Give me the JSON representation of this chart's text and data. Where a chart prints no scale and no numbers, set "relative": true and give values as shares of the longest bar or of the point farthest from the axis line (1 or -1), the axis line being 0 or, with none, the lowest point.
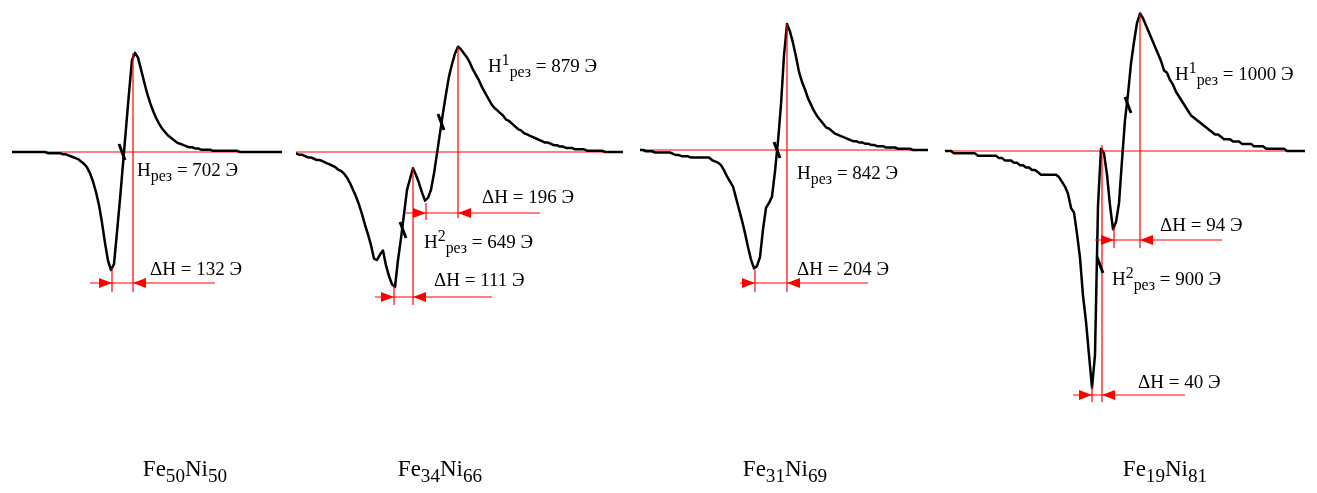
{
  "chart_data": [
    {
      "type": "line",
      "relative": true,
      "marker": "none",
      "color": "#000000",
      "xlabel": "Fe$_{50}$Ni$_{50}$",
      "ref_lines": [
        {
          "axis": "y",
          "value": 0,
          "color": "#ff0000"
        }
      ],
      "annotations": [
        "H$_{рез}$ = 702 Э",
        "ΔH = 132 Э"
      ],
      "categories": [
        null,
        null,
        null,
        null,
        null,
        null,
        null,
        null,
        null,
        null,
        null,
        null,
        null,
        null,
        null,
        null,
        null,
        null,
        null,
        null,
        null,
        null,
        null,
        null,
        null,
        null,
        null,
        null,
        null,
        null,
        null,
        null,
        null,
        null,
        null,
        null,
        null,
        null,
        null,
        null,
        null,
        null,
        null,
        null,
        null,
        null,
        null,
        null,
        null,
        null,
        null,
        null,
        null,
        null,
        null,
        null,
        null,
        null,
        null,
        null,
        null,
        null,
        null,
        null,
        null,
        null,
        null,
        null,
        null,
        null,
        null,
        null,
        null,
        null,
        null,
        null,
        null,
        null,
        null,
        null,
        null,
        null,
        null,
        null,
        null,
        null,
        null,
        null,
        null,
        null,
        null
      ],
      "values": [
        0,
        0,
        0,
        0,
        0,
        0,
        0,
        0,
        0,
        0,
        0,
        0,
        -0.01,
        -0.01,
        -0.01,
        -0.01,
        -0.01,
        -0.02,
        -0.02,
        -0.03,
        -0.04,
        -0.05,
        -0.06,
        -0.08,
        -0.1,
        -0.13,
        -0.18,
        -0.25,
        -0.34,
        -0.45,
        -0.6,
        -0.77,
        -0.92,
        -1,
        -0.95,
        -0.68,
        -0.4,
        -0.1,
        0.2,
        0.5,
        0.78,
        0.84,
        0.8,
        0.7,
        0.6,
        0.5,
        0.42,
        0.35,
        0.29,
        0.24,
        0.2,
        0.17,
        0.14,
        0.12,
        0.1,
        0.08,
        0.07,
        0.06,
        0.05,
        0.04,
        0.04,
        0.03,
        0.03,
        0.02,
        0.02,
        0.02,
        0.02,
        0.01,
        0.01,
        0.01,
        0.01,
        0.01,
        0.01,
        0.01,
        0.01,
        0.01,
        0,
        0,
        0,
        0,
        0,
        0,
        0,
        0,
        0,
        0,
        0,
        0,
        0,
        0,
        0
      ]
    },
    {
      "type": "line",
      "relative": true,
      "marker": "none",
      "color": "#000000",
      "xlabel": "Fe$_{34}$Ni$_{66}$",
      "ref_lines": [
        {
          "axis": "y",
          "value": 0,
          "color": "#ff0000"
        }
      ],
      "annotations": [
        "H$^{1}$$_{рез}$ = 879 Э",
        "ΔH = 196 Э",
        "H$^{2}$$_{рез}$ = 649 Э",
        "ΔH = 111 Э"
      ],
      "categories": [
        null,
        null,
        null,
        null,
        null,
        null,
        null,
        null,
        null,
        null,
        null,
        null,
        null,
        null,
        null,
        null,
        null,
        null,
        null,
        null,
        null,
        null,
        null,
        null,
        null,
        null,
        null,
        null,
        null,
        null,
        null,
        null,
        null,
        null,
        null,
        null,
        null,
        null,
        null,
        null,
        null,
        null,
        null,
        null,
        null,
        null,
        null,
        null,
        null,
        null,
        null,
        null,
        null,
        null,
        null,
        null,
        null,
        null,
        null,
        null,
        null,
        null,
        null,
        null,
        null,
        null,
        null,
        null,
        null,
        null,
        null,
        null,
        null,
        null,
        null,
        null,
        null,
        null,
        null,
        null,
        null,
        null,
        null,
        null,
        null,
        null,
        null,
        null,
        null,
        null,
        null,
        null,
        null,
        null,
        null,
        null,
        null,
        null,
        null,
        null,
        null,
        null,
        null,
        null,
        null,
        null,
        null,
        null,
        null,
        null
      ],
      "values": [
        -0.01,
        -0.02,
        -0.02,
        -0.03,
        -0.04,
        -0.04,
        -0.05,
        -0.06,
        -0.06,
        -0.07,
        -0.08,
        -0.09,
        -0.1,
        -0.11,
        -0.13,
        -0.14,
        -0.16,
        -0.19,
        -0.23,
        -0.28,
        -0.33,
        -0.39,
        -0.46,
        -0.54,
        -0.61,
        -0.69,
        -0.79,
        -0.8,
        -0.76,
        -0.73,
        -0.84,
        -0.92,
        -0.98,
        -1,
        -0.8,
        -0.64,
        -0.46,
        -0.28,
        -0.2,
        -0.12,
        -0.17,
        -0.23,
        -0.3,
        -0.36,
        -0.34,
        -0.28,
        -0.16,
        -0.01,
        0.14,
        0.29,
        0.43,
        0.56,
        0.65,
        0.73,
        0.78,
        0.76,
        0.73,
        0.7,
        0.66,
        0.61,
        0.57,
        0.53,
        0.48,
        0.44,
        0.4,
        0.36,
        0.33,
        0.31,
        0.29,
        0.27,
        0.24,
        0.23,
        0.21,
        0.19,
        0.17,
        0.16,
        0.14,
        0.13,
        0.12,
        0.11,
        0.1,
        0.09,
        0.08,
        0.07,
        0.07,
        0.06,
        0.05,
        0.05,
        0.04,
        0.04,
        0.03,
        0.03,
        0.03,
        0.02,
        0.02,
        0.02,
        0.02,
        0.01,
        0.01,
        0.01,
        0.01,
        0.01,
        0.01,
        0,
        0,
        0,
        0,
        0,
        0,
        0
      ]
    },
    {
      "type": "line",
      "relative": true,
      "marker": "none",
      "color": "#000000",
      "xlabel": "Fe$_{31}$Ni$_{69}$",
      "ref_lines": [
        {
          "axis": "y",
          "value": 0,
          "color": "#ff0000"
        }
      ],
      "annotations": [
        "H$_{рез}$ = 842 Э",
        "ΔH = 204 Э"
      ],
      "categories": [
        null,
        null,
        null,
        null,
        null,
        null,
        null,
        null,
        null,
        null,
        null,
        null,
        null,
        null,
        null,
        null,
        null,
        null,
        null,
        null,
        null,
        null,
        null,
        null,
        null,
        null,
        null,
        null,
        null,
        null,
        null,
        null,
        null,
        null,
        null,
        null,
        null,
        null,
        null,
        null,
        null,
        null,
        null,
        null,
        null,
        null,
        null,
        null,
        null,
        null,
        null,
        null,
        null,
        null,
        null,
        null,
        null,
        null,
        null,
        null,
        null,
        null,
        null,
        null,
        null,
        null,
        null,
        null,
        null,
        null,
        null,
        null,
        null,
        null,
        null,
        null,
        null,
        null,
        null,
        null,
        null,
        null,
        null,
        null,
        null,
        null,
        null,
        null,
        null,
        null,
        null,
        null,
        null,
        null,
        null,
        null,
        null
      ],
      "values": [
        0,
        0,
        -0.01,
        -0.01,
        -0.01,
        -0.02,
        -0.02,
        -0.02,
        -0.02,
        -0.02,
        -0.02,
        -0.03,
        -0.04,
        -0.04,
        -0.05,
        -0.05,
        -0.05,
        -0.06,
        -0.06,
        -0.06,
        -0.06,
        -0.06,
        -0.06,
        -0.06,
        -0.08,
        -0.09,
        -0.1,
        -0.12,
        -0.16,
        -0.21,
        -0.25,
        -0.29,
        -0.38,
        -0.47,
        -0.56,
        -0.66,
        -0.77,
        -0.87,
        -0.94,
        -0.92,
        -0.85,
        -0.63,
        -0.46,
        -0.42,
        -0.37,
        -0.17,
        0.07,
        0.36,
        0.75,
        1,
        0.94,
        0.85,
        0.74,
        0.62,
        0.54,
        0.48,
        0.41,
        0.36,
        0.31,
        0.27,
        0.24,
        0.21,
        0.18,
        0.17,
        0.15,
        0.13,
        0.12,
        0.11,
        0.1,
        0.09,
        0.08,
        0.07,
        0.07,
        0.06,
        0.06,
        0.05,
        0.05,
        0.04,
        0.04,
        0.03,
        0.03,
        0.03,
        0.02,
        0.02,
        0.02,
        0.02,
        0.01,
        0.01,
        0.01,
        0.01,
        0.01,
        0,
        0,
        0,
        0,
        0,
        0
      ]
    },
    {
      "type": "line",
      "relative": true,
      "marker": "none",
      "color": "#000000",
      "xlabel": "Fe$_{19}$Ni$_{81}$",
      "ref_lines": [
        {
          "axis": "y",
          "value": 0,
          "color": "#ff0000"
        }
      ],
      "annotations": [
        "H$^{1}$$_{рез}$ = 1000 Э",
        "ΔH = 94 Э",
        "H$^{2}$$_{рез}$ = 900 Э",
        "ΔH = 40 Э"
      ],
      "categories": [
        null,
        null,
        null,
        null,
        null,
        null,
        null,
        null,
        null,
        null,
        null,
        null,
        null,
        null,
        null,
        null,
        null,
        null,
        null,
        null,
        null,
        null,
        null,
        null,
        null,
        null,
        null,
        null,
        null,
        null,
        null,
        null,
        null,
        null,
        null,
        null,
        null,
        null,
        null,
        null,
        null,
        null,
        null,
        null,
        null,
        null,
        null,
        null,
        null,
        null,
        null,
        null,
        null,
        null,
        null,
        null,
        null,
        null,
        null,
        null,
        null,
        null,
        null,
        null,
        null,
        null,
        null,
        null,
        null,
        null,
        null,
        null,
        null,
        null,
        null,
        null,
        null,
        null,
        null,
        null,
        null,
        null,
        null,
        null,
        null,
        null,
        null,
        null,
        null,
        null,
        null,
        null,
        null,
        null,
        null,
        null,
        null,
        null,
        null,
        null,
        null,
        null,
        null,
        null,
        null,
        null,
        null,
        null,
        null,
        null,
        null,
        null,
        null,
        null,
        null,
        null,
        null,
        null,
        null,
        null,
        null
      ],
      "values": [
        0,
        0,
        0,
        -0.01,
        -0.01,
        -0.01,
        -0.01,
        -0.01,
        -0.01,
        -0.01,
        -0.01,
        -0.02,
        -0.02,
        -0.02,
        -0.02,
        -0.02,
        -0.02,
        -0.02,
        -0.03,
        -0.03,
        -0.04,
        -0.04,
        -0.04,
        -0.05,
        -0.05,
        -0.06,
        -0.06,
        -0.07,
        -0.07,
        -0.08,
        -0.08,
        -0.09,
        -0.1,
        -0.1,
        -0.1,
        -0.1,
        -0.1,
        -0.1,
        -0.11,
        -0.13,
        -0.15,
        -0.18,
        -0.24,
        -0.26,
        -0.35,
        -0.45,
        -0.61,
        -0.72,
        -0.86,
        -1,
        -0.86,
        -0.23,
        0.01,
        -0.01,
        -0.1,
        -0.23,
        -0.33,
        -0.3,
        -0.22,
        -0.04,
        0.13,
        0.24,
        0.37,
        0.46,
        0.54,
        0.58,
        0.56,
        0.53,
        0.5,
        0.47,
        0.44,
        0.41,
        0.38,
        0.34,
        0.33,
        0.3,
        0.28,
        0.25,
        0.23,
        0.21,
        0.19,
        0.17,
        0.15,
        0.14,
        0.13,
        0.12,
        0.11,
        0.1,
        0.09,
        0.08,
        0.07,
        0.07,
        0.06,
        0.05,
        0.05,
        0.05,
        0.04,
        0.04,
        0.04,
        0.03,
        0.03,
        0.03,
        0.03,
        0.02,
        0.02,
        0.02,
        0.02,
        0.01,
        0.01,
        0.01,
        0.01,
        0.01,
        0.01,
        0.01,
        0,
        0,
        0,
        0,
        0,
        0,
        0
      ]
    }
  ]
}
